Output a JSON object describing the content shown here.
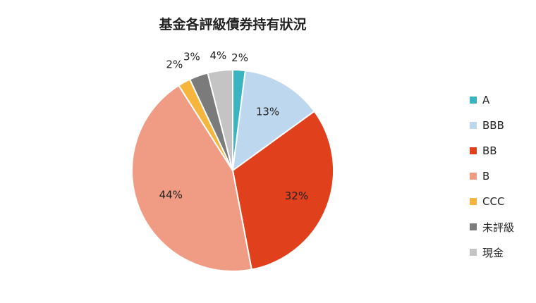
{
  "chart_data": {
    "type": "pie",
    "title": "基金各評級債券持有狀況",
    "categories": [
      "A",
      "BBB",
      "BB",
      "B",
      "CCC",
      "未評級",
      "現金"
    ],
    "values": [
      2,
      13,
      32,
      44,
      2,
      3,
      4
    ],
    "labels": [
      "2%",
      "13%",
      "32%",
      "44%",
      "2%",
      "3%",
      "4%"
    ],
    "colors": [
      "#3bb4c1",
      "#bdd7ee",
      "#e0401c",
      "#f09c84",
      "#f6b53c",
      "#7b7b7b",
      "#c4c4c4"
    ],
    "legend_position": "right",
    "start": "top",
    "direction": "clockwise"
  }
}
